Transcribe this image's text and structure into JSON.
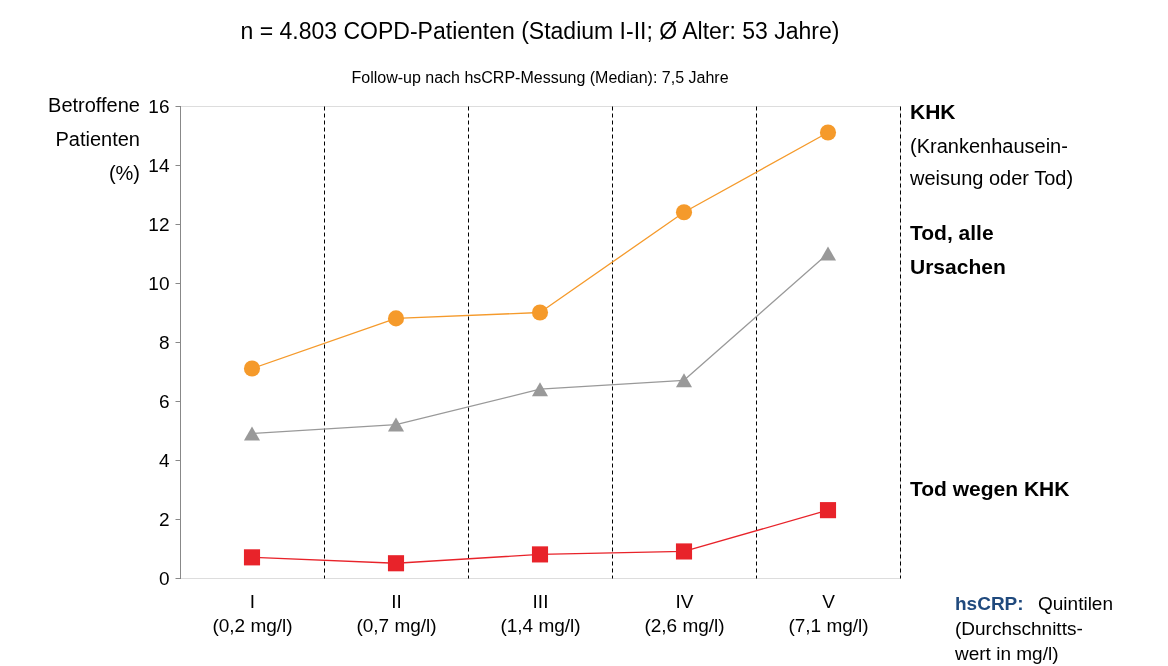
{
  "chart_data": {
    "type": "line",
    "title": "n = 4.803 COPD-Patienten (Stadium I-II; Ø Alter: 53 Jahre)",
    "subtitle": "Follow-up nach hsCRP-Messung (Median): 7,5 Jahre",
    "ylabel": "Betroffene\nPatienten\n(%)",
    "xlabel": "hsCRP: Quintilen\n(Durchschnitts-\nwert in mg/l)",
    "categories": [
      "I\n(0,2 mg/l)",
      "II\n(0,7 mg/l)",
      "III\n(1,4 mg/l)",
      "IV\n(2,6 mg/l)",
      "V\n(7,1 mg/l)"
    ],
    "series": [
      {
        "name": "KHK",
        "color": "#f59a2b",
        "marker": "circle",
        "values": [
          7.1,
          8.8,
          9.0,
          12.4,
          15.1
        ]
      },
      {
        "name": "Tod, alle\nUrsachen",
        "color": "#999999",
        "marker": "triangle",
        "values": [
          4.9,
          5.2,
          6.4,
          6.7,
          11.0
        ]
      },
      {
        "name": "Tod wegen KHK",
        "color": "#e8232a",
        "marker": "square",
        "values": [
          0.7,
          0.5,
          0.8,
          0.9,
          2.3
        ]
      }
    ],
    "annotations": [
      "(Krankenhausein-\nweisung oder Tod)"
    ],
    "ylim": [
      0,
      16
    ],
    "yticks": [
      0,
      2,
      4,
      6,
      8,
      10,
      12,
      14,
      16
    ],
    "grid": "x",
    "legend": false,
    "line_style": "solid"
  }
}
